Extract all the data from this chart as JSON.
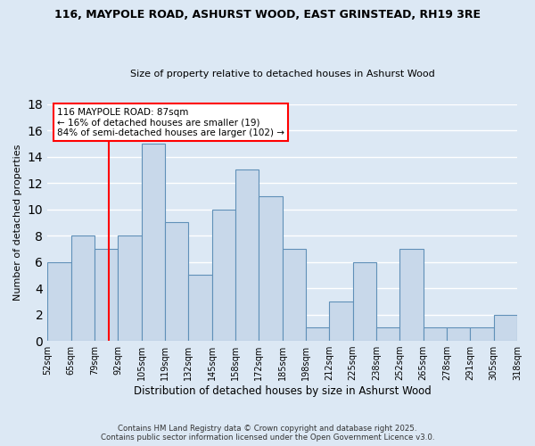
{
  "title": "116, MAYPOLE ROAD, ASHURST WOOD, EAST GRINSTEAD, RH19 3RE",
  "subtitle": "Size of property relative to detached houses in Ashurst Wood",
  "xlabel": "Distribution of detached houses by size in Ashurst Wood",
  "ylabel": "Number of detached properties",
  "bar_color": "#c8d8ea",
  "bar_edge_color": "#6090b8",
  "background_color": "#dce8f4",
  "grid_color": "#ffffff",
  "bin_labels": [
    "52sqm",
    "65sqm",
    "79sqm",
    "92sqm",
    "105sqm",
    "119sqm",
    "132sqm",
    "145sqm",
    "158sqm",
    "172sqm",
    "185sqm",
    "198sqm",
    "212sqm",
    "225sqm",
    "238sqm",
    "252sqm",
    "265sqm",
    "278sqm",
    "291sqm",
    "305sqm",
    "318sqm"
  ],
  "bar_values": [
    6,
    8,
    7,
    8,
    15,
    9,
    5,
    10,
    13,
    11,
    7,
    1,
    3,
    6,
    1,
    7,
    1,
    1,
    1,
    2
  ],
  "vline_x_index": 2,
  "annotation_title": "116 MAYPOLE ROAD: 87sqm",
  "annotation_line1": "← 16% of detached houses are smaller (19)",
  "annotation_line2": "84% of semi-detached houses are larger (102) →",
  "ylim": [
    0,
    18
  ],
  "yticks": [
    0,
    2,
    4,
    6,
    8,
    10,
    12,
    14,
    16,
    18
  ],
  "footer1": "Contains HM Land Registry data © Crown copyright and database right 2025.",
  "footer2": "Contains public sector information licensed under the Open Government Licence v3.0.",
  "n_bars": 20
}
